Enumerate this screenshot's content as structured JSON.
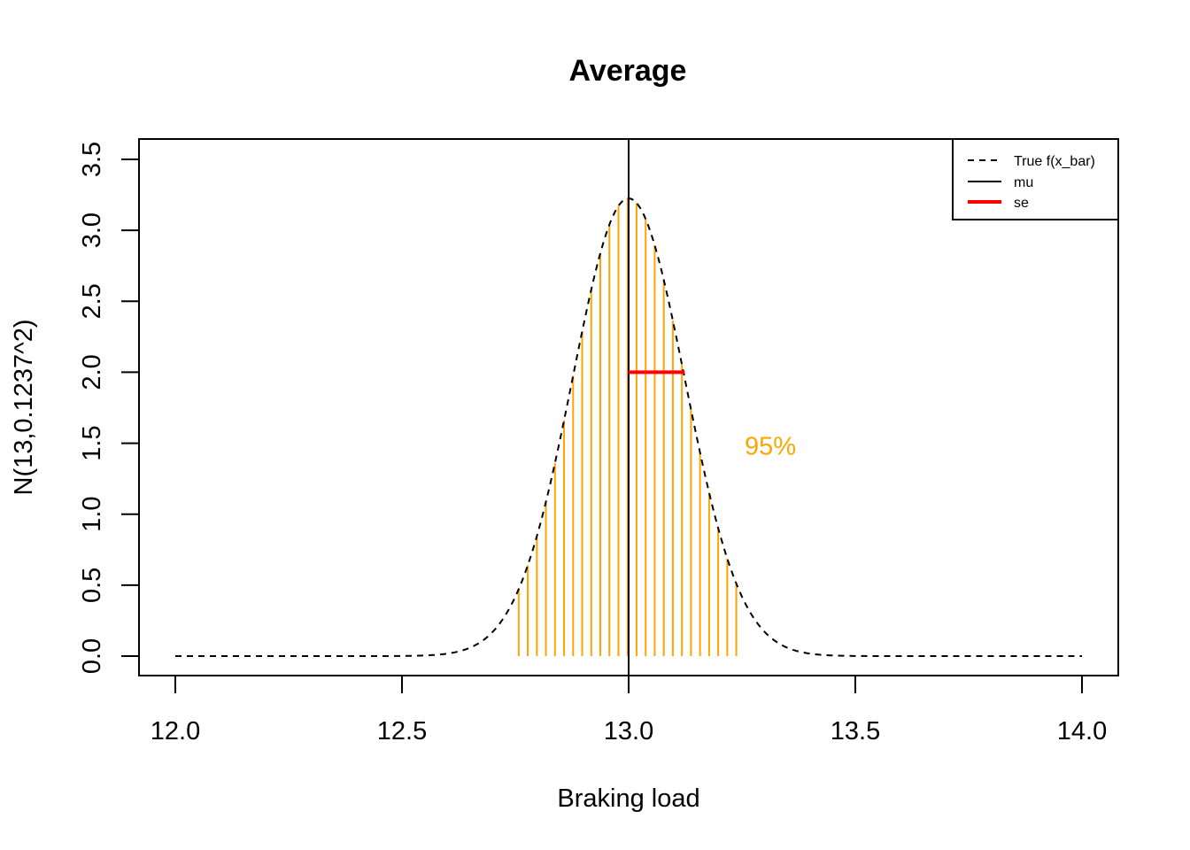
{
  "chart_data": {
    "type": "line",
    "title": "Average",
    "xlabel": "Braking load",
    "ylabel": "N(13,0.1237^2)",
    "xlim": [
      12.0,
      14.0
    ],
    "ylim": [
      0.0,
      3.5
    ],
    "x_ticks": [
      "12.0",
      "12.5",
      "13.0",
      "13.5",
      "14.0"
    ],
    "y_ticks": [
      "0.0",
      "0.5",
      "1.0",
      "1.5",
      "2.0",
      "2.5",
      "3.0",
      "3.5"
    ],
    "distribution": {
      "mean": 13.0,
      "sd": 0.1237
    },
    "series": [
      {
        "name": "True f(x_bar)",
        "style": "dashed",
        "color": "#000000",
        "x_range": [
          12.0,
          14.0
        ]
      },
      {
        "name": "mu",
        "style": "solid",
        "color": "#000000",
        "x": 13.0
      },
      {
        "name": "se",
        "style": "solid-thick",
        "color": "#ff0000",
        "x_range": [
          13.0,
          13.1237
        ],
        "y": 2.0
      }
    ],
    "shaded_region": {
      "color": "#ffa500",
      "x_range": [
        12.7575,
        13.2425
      ],
      "label": "95%"
    },
    "annotations": [
      {
        "text": "95%",
        "x": 13.25,
        "y": 1.5,
        "color": "#ffa500"
      }
    ],
    "legend": {
      "position": "top-right",
      "entries": [
        "True f(x_bar)",
        "mu",
        "se"
      ]
    },
    "grid": false
  }
}
